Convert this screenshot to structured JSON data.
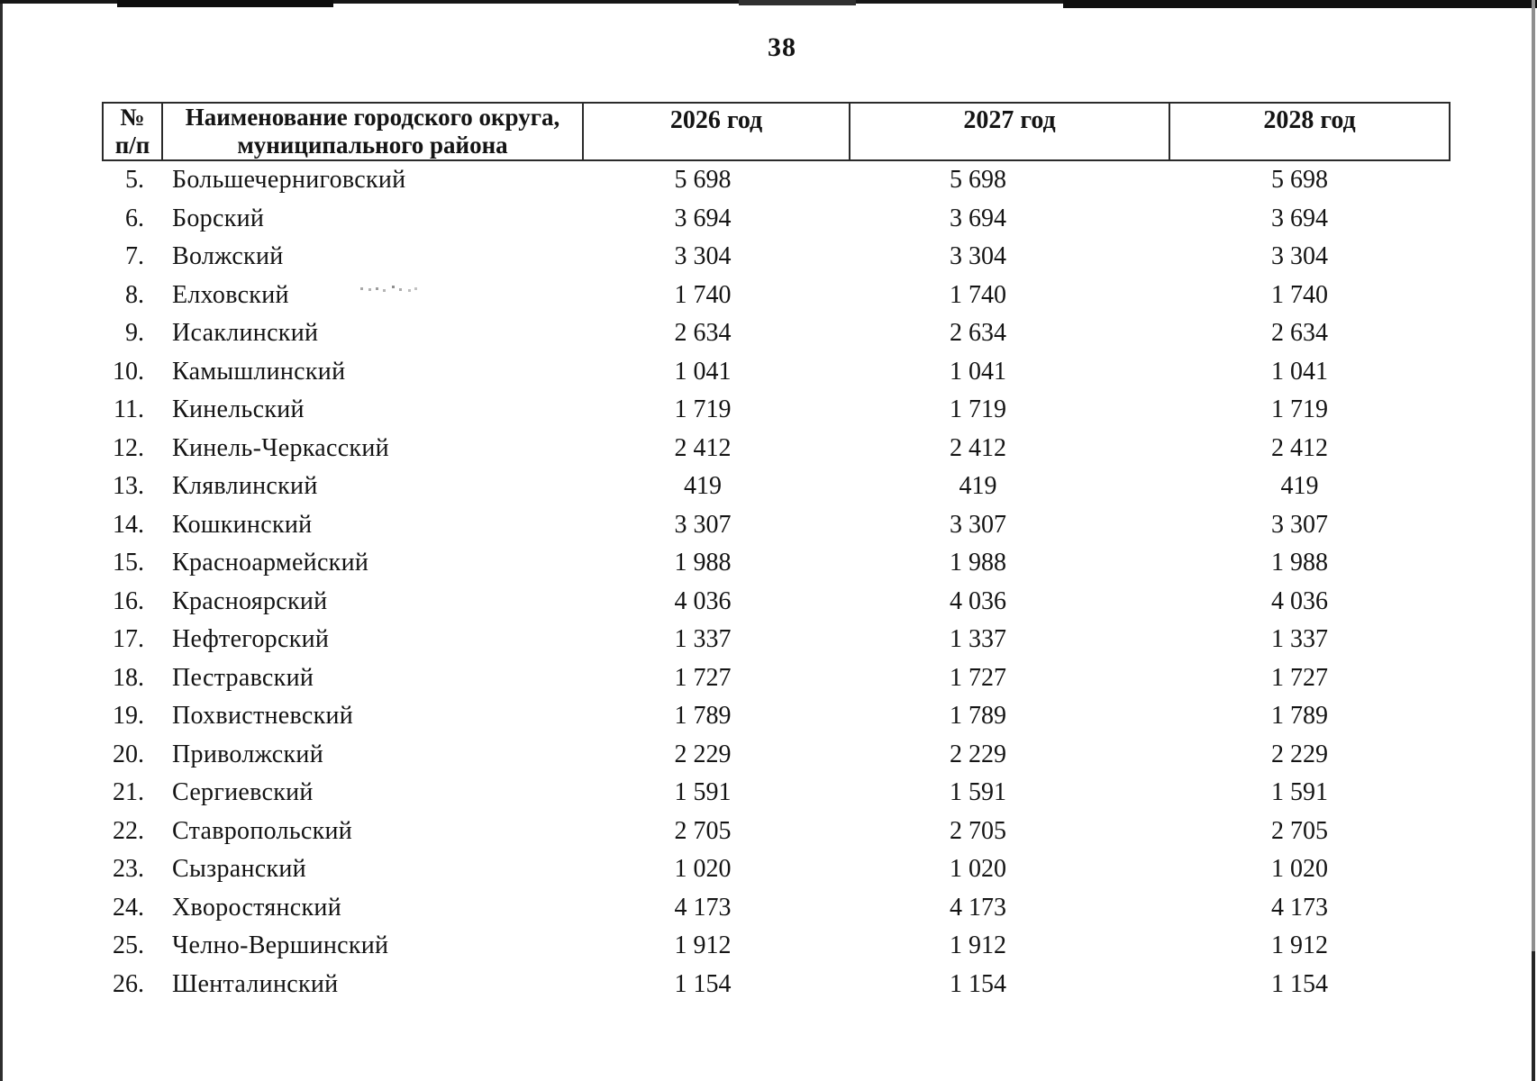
{
  "page": {
    "number": "38"
  },
  "table": {
    "header": {
      "num_lines": [
        "№",
        "п/п"
      ],
      "name_lines": [
        "Наименование городского округа,",
        "муниципального района"
      ],
      "year_2026": "2026 год",
      "year_2027": "2027 год",
      "year_2028": "2028 год"
    },
    "rows": [
      {
        "n": "5.",
        "name": "Большечерниговский",
        "y2026": "5 698",
        "y2027": "5 698",
        "y2028": "5 698"
      },
      {
        "n": "6.",
        "name": "Борский",
        "y2026": "3 694",
        "y2027": "3 694",
        "y2028": "3 694"
      },
      {
        "n": "7.",
        "name": "Волжский",
        "y2026": "3 304",
        "y2027": "3 304",
        "y2028": "3 304"
      },
      {
        "n": "8.",
        "name": "Елховский",
        "y2026": "1 740",
        "y2027": "1 740",
        "y2028": "1 740"
      },
      {
        "n": "9.",
        "name": "Исаклинский",
        "y2026": "2 634",
        "y2027": "2 634",
        "y2028": "2 634"
      },
      {
        "n": "10.",
        "name": "Камышлинский",
        "y2026": "1 041",
        "y2027": "1 041",
        "y2028": "1 041"
      },
      {
        "n": "11.",
        "name": "Кинельский",
        "y2026": "1 719",
        "y2027": "1 719",
        "y2028": "1 719"
      },
      {
        "n": "12.",
        "name": "Кинель-Черкасский",
        "y2026": "2 412",
        "y2027": "2 412",
        "y2028": "2 412"
      },
      {
        "n": "13.",
        "name": "Клявлинский",
        "y2026": "419",
        "y2027": "419",
        "y2028": "419"
      },
      {
        "n": "14.",
        "name": "Кошкинский",
        "y2026": "3 307",
        "y2027": "3 307",
        "y2028": "3 307"
      },
      {
        "n": "15.",
        "name": "Красноармейский",
        "y2026": "1 988",
        "y2027": "1 988",
        "y2028": "1 988"
      },
      {
        "n": "16.",
        "name": "Красноярский",
        "y2026": "4 036",
        "y2027": "4 036",
        "y2028": "4 036"
      },
      {
        "n": "17.",
        "name": "Нефтегорский",
        "y2026": "1 337",
        "y2027": "1 337",
        "y2028": "1 337"
      },
      {
        "n": "18.",
        "name": "Пестравский",
        "y2026": "1 727",
        "y2027": "1 727",
        "y2028": "1 727"
      },
      {
        "n": "19.",
        "name": "Похвистневский",
        "y2026": "1 789",
        "y2027": "1 789",
        "y2028": "1 789"
      },
      {
        "n": "20.",
        "name": "Приволжский",
        "y2026": "2 229",
        "y2027": "2 229",
        "y2028": "2 229"
      },
      {
        "n": "21.",
        "name": "Сергиевский",
        "y2026": "1 591",
        "y2027": "1 591",
        "y2028": "1 591"
      },
      {
        "n": "22.",
        "name": "Ставропольский",
        "y2026": "2 705",
        "y2027": "2 705",
        "y2028": "2 705"
      },
      {
        "n": "23.",
        "name": "Сызранский",
        "y2026": "1 020",
        "y2027": "1 020",
        "y2028": "1 020"
      },
      {
        "n": "24.",
        "name": "Хворостянский",
        "y2026": "4 173",
        "y2027": "4 173",
        "y2028": "4 173"
      },
      {
        "n": "25.",
        "name": "Челно-Вершинский",
        "y2026": "1 912",
        "y2027": "1 912",
        "y2028": "1 912"
      },
      {
        "n": "26.",
        "name": "Шенталинский",
        "y2026": "1 154",
        "y2027": "1 154",
        "y2028": "1 154"
      }
    ]
  }
}
